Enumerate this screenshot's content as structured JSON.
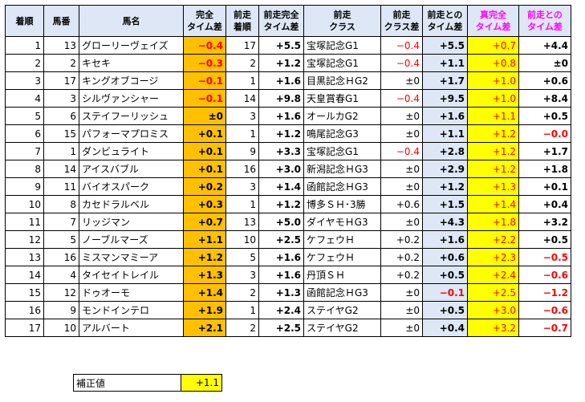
{
  "headers": [
    "着順",
    "馬番",
    "馬名",
    "完全\nタイム差",
    "前走\n着順",
    "前走完全\nタイム差",
    "前走\nクラス",
    "前走\nクラス差",
    "前走との\nタイム差",
    "真完全\nタイム差",
    "前走との\nタイム差"
  ],
  "rows": [
    {
      "rank": "1",
      "num": "13",
      "name": "グローリーヴェイズ",
      "ct": "−0.4",
      "ct_neg": true,
      "prev_rank": "17",
      "prev_ct": "+5.5",
      "prev_class": "宝塚記念G1",
      "class_diff": "−0.4",
      "cd_neg": true,
      "vs_prev": "+5.5",
      "true_ct": "+0.7",
      "diff": "+4.4",
      "diff_neg": false
    },
    {
      "rank": "2",
      "num": "2",
      "name": "キセキ",
      "ct": "−0.3",
      "ct_neg": true,
      "prev_rank": "2",
      "prev_ct": "+1.2",
      "prev_class": "宝塚記念G1",
      "class_diff": "−0.4",
      "cd_neg": true,
      "vs_prev": "+1.1",
      "true_ct": "+0.8",
      "diff": "±0",
      "diff_neg": false
    },
    {
      "rank": "3",
      "num": "17",
      "name": "キングオブコージ",
      "ct": "−0.1",
      "ct_neg": true,
      "prev_rank": "1",
      "prev_ct": "+1.6",
      "prev_class": "目黒記念ＨG2",
      "class_diff": "±0",
      "cd_neg": false,
      "vs_prev": "+1.7",
      "true_ct": "+1.0",
      "diff": "+0.6",
      "diff_neg": false
    },
    {
      "rank": "4",
      "num": "3",
      "name": "シルヴァンシャー",
      "ct": "−0.1",
      "ct_neg": true,
      "prev_rank": "14",
      "prev_ct": "+9.8",
      "prev_class": "天皇賞春G1",
      "class_diff": "−0.4",
      "cd_neg": true,
      "vs_prev": "+9.5",
      "true_ct": "+1.0",
      "diff": "+8.4",
      "diff_neg": false
    },
    {
      "rank": "5",
      "num": "6",
      "name": "ステイフーリッシュ",
      "ct": "±0",
      "ct_neg": false,
      "prev_rank": "3",
      "prev_ct": "+1.6",
      "prev_class": "オールカG2",
      "class_diff": "±0",
      "cd_neg": false,
      "vs_prev": "+1.6",
      "true_ct": "+1.1",
      "diff": "+0.5",
      "diff_neg": false
    },
    {
      "rank": "6",
      "num": "15",
      "name": "パフォーマプロミス",
      "ct": "+0.1",
      "ct_neg": false,
      "prev_rank": "1",
      "prev_ct": "+1.2",
      "prev_class": "鳴尾記念G3",
      "class_diff": "±0",
      "cd_neg": false,
      "vs_prev": "+1.1",
      "true_ct": "+1.2",
      "diff": "−0.0",
      "diff_neg": true
    },
    {
      "rank": "7",
      "num": "1",
      "name": "ダンビュライト",
      "ct": "+0.1",
      "ct_neg": false,
      "prev_rank": "9",
      "prev_ct": "+3.3",
      "prev_class": "宝塚記念G1",
      "class_diff": "−0.4",
      "cd_neg": true,
      "vs_prev": "+2.8",
      "true_ct": "+1.2",
      "diff": "+1.7",
      "diff_neg": false
    },
    {
      "rank": "8",
      "num": "14",
      "name": "アイスバブル",
      "ct": "+0.1",
      "ct_neg": false,
      "prev_rank": "16",
      "prev_ct": "+3.0",
      "prev_class": "新潟記念ＨG3",
      "class_diff": "±0",
      "cd_neg": false,
      "vs_prev": "+2.9",
      "true_ct": "+1.2",
      "diff": "+1.8",
      "diff_neg": false
    },
    {
      "rank": "9",
      "num": "11",
      "name": "バイオスパーク",
      "ct": "+0.2",
      "ct_neg": false,
      "prev_rank": "3",
      "prev_ct": "+1.4",
      "prev_class": "函館記念ＨG3",
      "class_diff": "±0",
      "cd_neg": false,
      "vs_prev": "+1.2",
      "true_ct": "+1.3",
      "diff": "+0.1",
      "diff_neg": false
    },
    {
      "rank": "10",
      "num": "8",
      "name": "カセドラルベル",
      "ct": "+0.3",
      "ct_neg": false,
      "prev_rank": "1",
      "prev_ct": "+1.2",
      "prev_class": "博多ＳＨ･3勝",
      "class_diff": "+0.6",
      "cd_neg": false,
      "vs_prev": "+1.5",
      "true_ct": "+1.4",
      "diff": "+0.4",
      "diff_neg": false
    },
    {
      "rank": "11",
      "num": "7",
      "name": "リッジマン",
      "ct": "+0.7",
      "ct_neg": false,
      "prev_rank": "13",
      "prev_ct": "+5.0",
      "prev_class": "ダイヤモＨG3",
      "class_diff": "±0",
      "cd_neg": false,
      "vs_prev": "+4.3",
      "true_ct": "+1.8",
      "diff": "+3.2",
      "diff_neg": false
    },
    {
      "rank": "12",
      "num": "5",
      "name": "ノーブルマーズ",
      "ct": "+1.1",
      "ct_neg": false,
      "prev_rank": "10",
      "prev_ct": "+2.5",
      "prev_class": "ケフェウＨ",
      "class_diff": "+0.2",
      "cd_neg": false,
      "vs_prev": "+1.6",
      "true_ct": "+2.2",
      "diff": "+0.5",
      "diff_neg": false
    },
    {
      "rank": "13",
      "num": "16",
      "name": "ミスマンマミーア",
      "ct": "+1.2",
      "ct_neg": false,
      "prev_rank": "5",
      "prev_ct": "+1.6",
      "prev_class": "ケフェウＨ",
      "class_diff": "+0.2",
      "cd_neg": false,
      "vs_prev": "+0.6",
      "true_ct": "+2.3",
      "diff": "−0.5",
      "diff_neg": true
    },
    {
      "rank": "14",
      "num": "4",
      "name": "タイセイトレイル",
      "ct": "+1.3",
      "ct_neg": false,
      "prev_rank": "3",
      "prev_ct": "+1.6",
      "prev_class": "丹頂ＳＨ",
      "class_diff": "+0.2",
      "cd_neg": false,
      "vs_prev": "+0.5",
      "true_ct": "+2.4",
      "diff": "−0.6",
      "diff_neg": true
    },
    {
      "rank": "15",
      "num": "12",
      "name": "ドゥオーモ",
      "ct": "+1.4",
      "ct_neg": false,
      "prev_rank": "2",
      "prev_ct": "+1.3",
      "prev_class": "函館記念ＨG3",
      "class_diff": "±0",
      "cd_neg": false,
      "vs_prev": "−0.1",
      "vs_neg": true,
      "true_ct": "+2.5",
      "diff": "−1.2",
      "diff_neg": true
    },
    {
      "rank": "16",
      "num": "9",
      "name": "モンドインテロ",
      "ct": "+1.9",
      "ct_neg": false,
      "prev_rank": "1",
      "prev_ct": "+2.4",
      "prev_class": "ステイヤG2",
      "class_diff": "±0",
      "cd_neg": false,
      "vs_prev": "+0.5",
      "true_ct": "+3.0",
      "diff": "−0.6",
      "diff_neg": true
    },
    {
      "rank": "17",
      "num": "10",
      "name": "アルバート",
      "ct": "+2.1",
      "ct_neg": false,
      "prev_rank": "2",
      "prev_ct": "+2.5",
      "prev_class": "ステイヤG2",
      "class_diff": "±0",
      "cd_neg": false,
      "vs_prev": "+0.4",
      "true_ct": "+3.2",
      "diff": "−0.7",
      "diff_neg": true
    }
  ],
  "correction": {
    "label": "補正値",
    "value": "+1.1"
  }
}
